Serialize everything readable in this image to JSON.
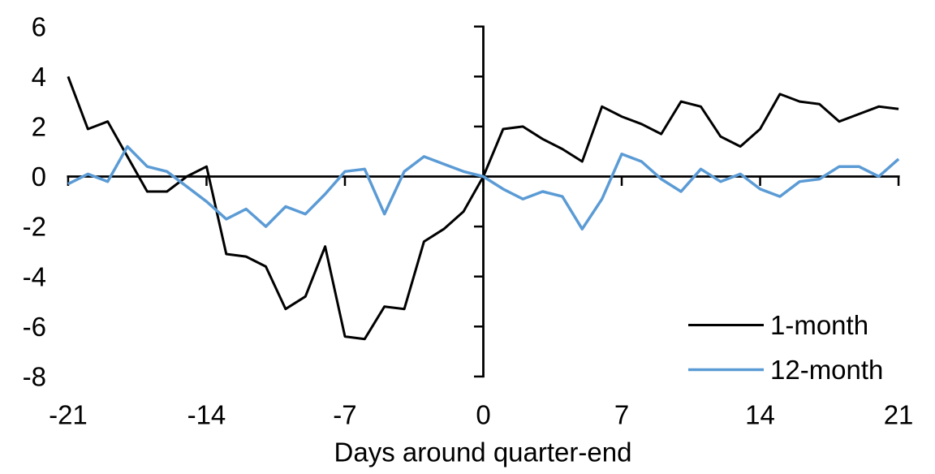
{
  "chart_data": {
    "type": "line",
    "title": "",
    "xlabel": "Days around quarter-end",
    "ylabel": "",
    "x": [
      -21,
      -20,
      -19,
      -18,
      -17,
      -16,
      -15,
      -14,
      -13,
      -12,
      -11,
      -10,
      -9,
      -8,
      -7,
      -6,
      -5,
      -4,
      -3,
      -2,
      -1,
      0,
      1,
      2,
      3,
      4,
      5,
      6,
      7,
      8,
      9,
      10,
      11,
      12,
      13,
      14,
      15,
      16,
      17,
      18,
      19,
      20,
      21
    ],
    "series": [
      {
        "name": "1-month",
        "color": "#000000",
        "values": [
          4.0,
          1.9,
          2.2,
          0.8,
          -0.6,
          -0.6,
          0.0,
          0.4,
          -3.1,
          -3.2,
          -3.6,
          -5.3,
          -4.8,
          -2.8,
          -6.4,
          -6.5,
          -5.2,
          -5.3,
          -2.6,
          -2.1,
          -1.4,
          0.0,
          1.9,
          2.0,
          1.5,
          1.1,
          0.6,
          2.8,
          2.4,
          2.1,
          1.7,
          3.0,
          2.8,
          1.6,
          1.2,
          1.9,
          3.3,
          3.0,
          2.9,
          2.2,
          2.5,
          2.8,
          2.7
        ]
      },
      {
        "name": "12-month",
        "color": "#5B9BD5",
        "values": [
          -0.3,
          0.1,
          -0.2,
          1.2,
          0.4,
          0.2,
          -0.4,
          -1.0,
          -1.7,
          -1.3,
          -2.0,
          -1.2,
          -1.5,
          -0.7,
          0.2,
          0.3,
          -1.5,
          0.2,
          0.8,
          0.5,
          0.2,
          0.0,
          -0.5,
          -0.9,
          -0.6,
          -0.8,
          -2.1,
          -0.9,
          0.9,
          0.6,
          -0.1,
          -0.6,
          0.3,
          -0.2,
          0.1,
          -0.5,
          -0.8,
          -0.2,
          -0.1,
          0.4,
          0.4,
          0.0,
          0.7
        ]
      }
    ],
    "xticks": [
      -21,
      -14,
      -7,
      0,
      7,
      14,
      21
    ],
    "yticks": [
      6,
      4,
      2,
      0,
      -2,
      -4,
      -6,
      -8
    ],
    "xlim": [
      -21,
      21
    ],
    "ylim": [
      -8,
      6
    ],
    "grid": "off",
    "legend_position": "bottom-right",
    "axes_note": "x-axis drawn at y=0, y-axis drawn at x=0, tick labels at plot edges"
  }
}
